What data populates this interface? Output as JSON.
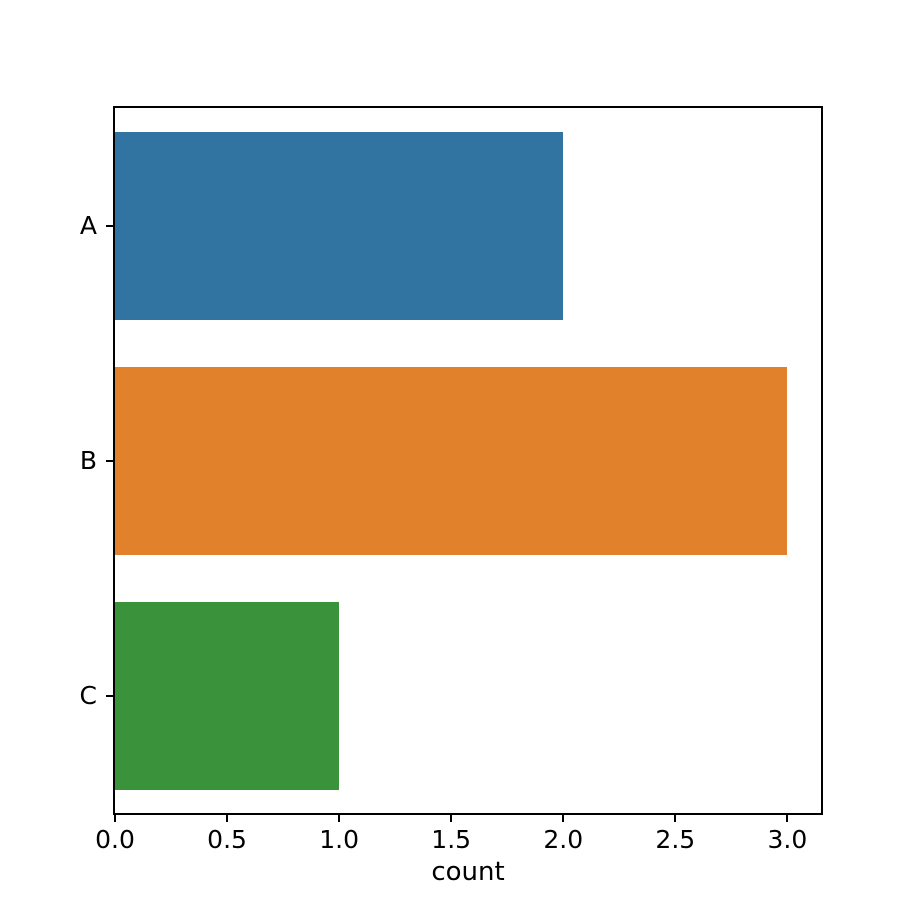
{
  "chart_data": {
    "type": "bar",
    "orientation": "horizontal",
    "title": "",
    "xlabel": "count",
    "ylabel": "",
    "categories": [
      "A",
      "B",
      "C"
    ],
    "values": [
      2,
      3,
      1
    ],
    "bar_colors": [
      "#3274a1",
      "#e1812c",
      "#3a923a"
    ],
    "xlim": [
      0,
      3.15
    ],
    "x_ticks": [
      {
        "value": 0.0,
        "label": "0.0"
      },
      {
        "value": 0.5,
        "label": "0.5"
      },
      {
        "value": 1.0,
        "label": "1.0"
      },
      {
        "value": 1.5,
        "label": "1.5"
      },
      {
        "value": 2.0,
        "label": "2.0"
      },
      {
        "value": 2.5,
        "label": "2.5"
      },
      {
        "value": 3.0,
        "label": "3.0"
      }
    ],
    "bar_relative_height": 0.8,
    "grid": false,
    "legend": null,
    "axis_color": "#000000",
    "text_color": "#000000",
    "background_color": "#ffffff"
  }
}
